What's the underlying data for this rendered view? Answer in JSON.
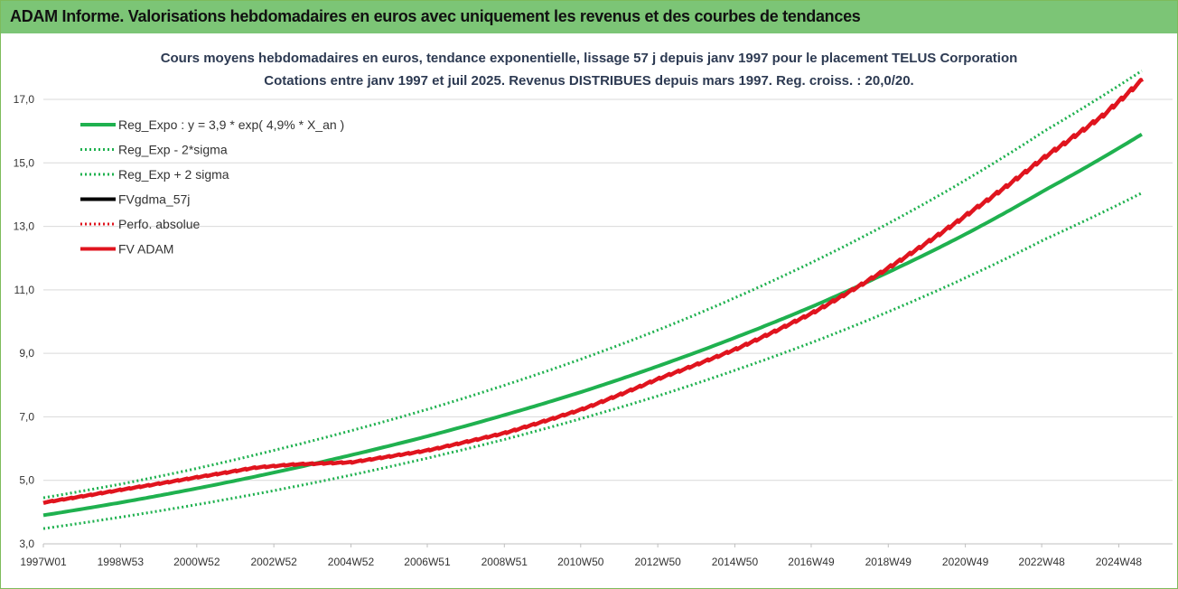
{
  "header": {
    "title": "ADAM Informe. Valorisations hebdomadaires en euros avec uniquement les revenus et des courbes de tendances"
  },
  "chart_data": {
    "type": "line",
    "title": "Cours moyens hebdomadaires en euros, tendance exponentielle, lissage 57 j depuis janv 1997  pour le placement TELUS Corporation",
    "subtitle": "Cotations entre janv 1997 et juil 2025. Revenus DISTRIBUES depuis mars 1997. Reg. croiss. : 20,0/20.",
    "xlabel": "",
    "ylabel": "",
    "x_ticks": [
      "1997W01",
      "1998W53",
      "2000W52",
      "2002W52",
      "2004W52",
      "2006W51",
      "2008W51",
      "2010W50",
      "2012W50",
      "2014W50",
      "2016W49",
      "2018W49",
      "2020W49",
      "2022W48",
      "2024W48"
    ],
    "y_ticks": [
      "3,0",
      "5,0",
      "7,0",
      "9,0",
      "11,0",
      "13,0",
      "15,0",
      "17,0"
    ],
    "xlim": [
      1997.0,
      2025.55
    ],
    "ylim": [
      3.0,
      17.8
    ],
    "grid": "horizontal",
    "legend_position": "top-left",
    "series": [
      {
        "name": "Reg_Expo : y = 3,9 * exp( 4,9% *  X_an )",
        "color": "#1fb14f",
        "style": "solid",
        "x": [
          1997.0,
          1999.0,
          2001.0,
          2003.0,
          2005.0,
          2007.0,
          2009.0,
          2011.0,
          2013.0,
          2015.0,
          2017.0,
          2019.0,
          2021.0,
          2023.0,
          2025.5
        ],
        "values": [
          3.9,
          4.3,
          4.75,
          5.25,
          5.8,
          6.4,
          7.07,
          7.8,
          8.62,
          9.52,
          10.5,
          11.6,
          12.8,
          14.15,
          15.9
        ]
      },
      {
        "name": "Reg_Exp - 2*sigma",
        "color": "#1fb14f",
        "style": "dotted",
        "x": [
          1997.0,
          1999.0,
          2001.0,
          2003.0,
          2005.0,
          2007.0,
          2009.0,
          2011.0,
          2013.0,
          2015.0,
          2017.0,
          2019.0,
          2021.0,
          2023.0,
          2025.5
        ],
        "values": [
          3.48,
          3.84,
          4.24,
          4.68,
          5.17,
          5.71,
          6.3,
          6.96,
          7.68,
          8.49,
          9.37,
          10.35,
          11.42,
          12.6,
          14.05
        ]
      },
      {
        "name": "Reg_Exp + 2 sigma",
        "color": "#1fb14f",
        "style": "dotted",
        "x": [
          1997.0,
          1999.0,
          2001.0,
          2003.0,
          2005.0,
          2007.0,
          2009.0,
          2011.0,
          2013.0,
          2015.0,
          2017.0,
          2019.0,
          2021.0,
          2023.0,
          2025.5
        ],
        "values": [
          4.45,
          4.88,
          5.38,
          5.95,
          6.57,
          7.25,
          8.01,
          8.84,
          9.76,
          10.78,
          11.9,
          13.14,
          14.51,
          16.02,
          17.9
        ]
      },
      {
        "name": "FVgdma_57j",
        "color": "#000000",
        "style": "solid",
        "x": [],
        "values": []
      },
      {
        "name": "Perfo. absolue",
        "color": "#e0141e",
        "style": "dotted",
        "x": [],
        "values": []
      },
      {
        "name": "FV ADAM",
        "color": "#e0141e",
        "style": "solid",
        "x": [
          1997.0,
          1999.0,
          2001.0,
          2002.5,
          2003.5,
          2005.0,
          2007.0,
          2009.0,
          2011.0,
          2013.0,
          2015.0,
          2017.0,
          2019.0,
          2021.0,
          2023.0,
          2024.5,
          2025.5
        ],
        "values": [
          4.3,
          4.7,
          5.1,
          5.4,
          5.5,
          5.57,
          5.95,
          6.5,
          7.25,
          8.22,
          9.15,
          10.3,
          11.75,
          13.4,
          15.2,
          16.5,
          17.6
        ]
      }
    ]
  }
}
